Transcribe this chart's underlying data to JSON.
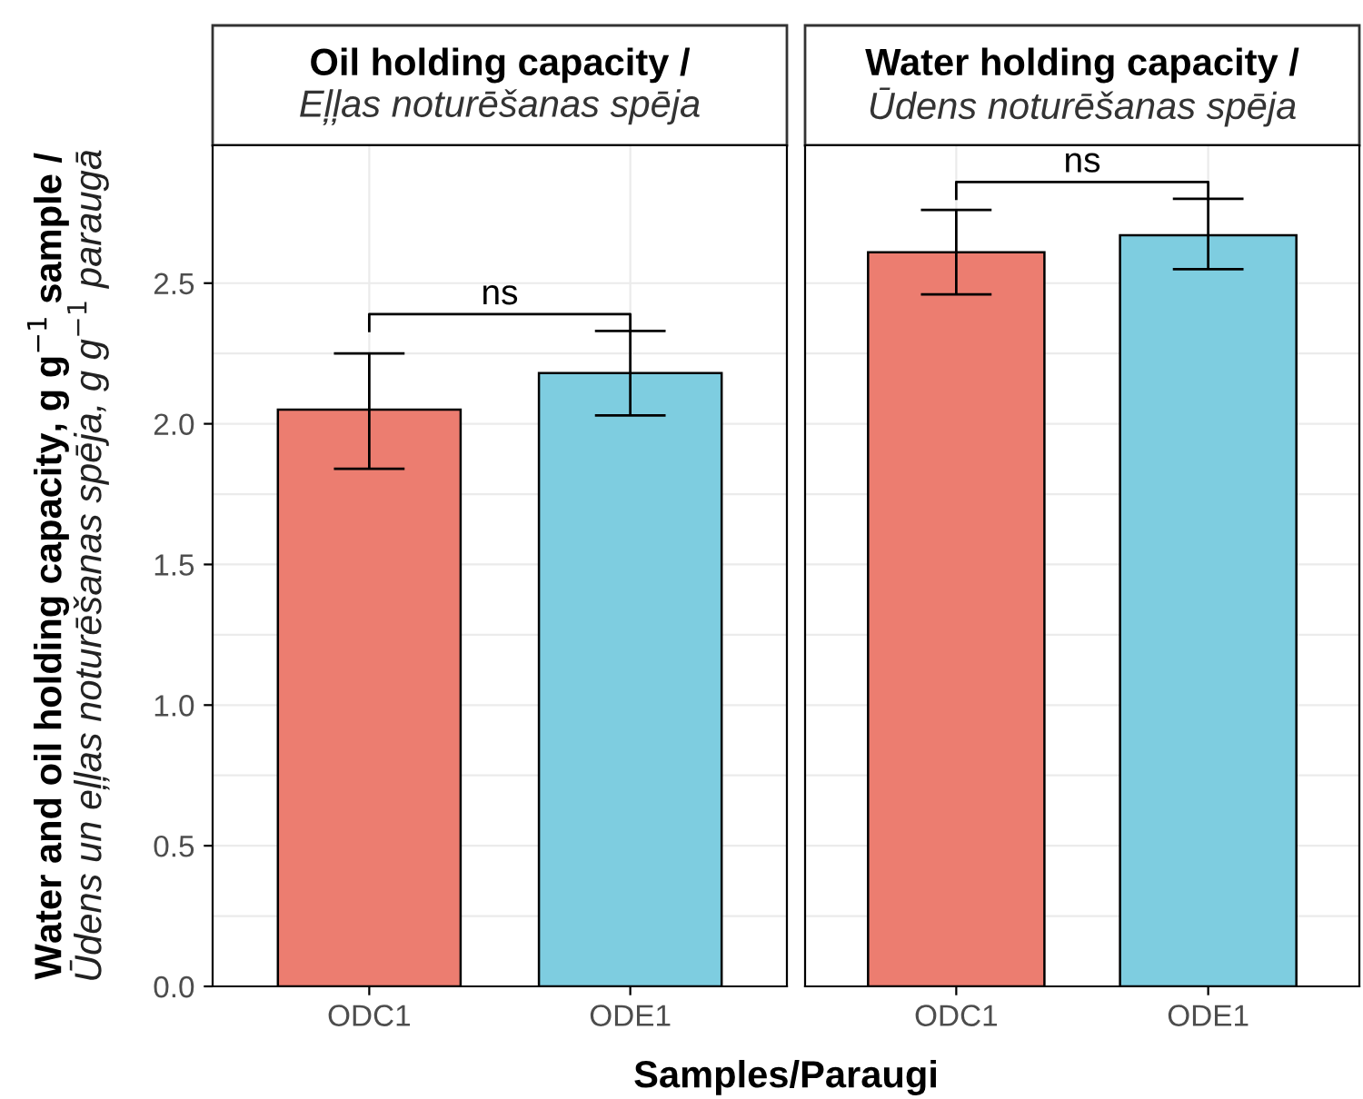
{
  "chart_data": [
    {
      "type": "bar",
      "title": "Oil holding capacity /",
      "subtitle": "Eļļas noturēšanas spēja",
      "xlabel": "Samples/Paraugi",
      "ylabel": "Water and oil holding capacity, g g$^{−1}$ sample /\nŪdens un eļļas noturēšanas spēja, g g$^{−1}$ paraugā",
      "categories": [
        "ODC1",
        "ODE1"
      ],
      "values": [
        2.05,
        2.18
      ],
      "colors": [
        "#ec7d70",
        "#7ecde0"
      ],
      "errors": [
        [
          1.84,
          2.25
        ],
        [
          2.03,
          2.33
        ]
      ],
      "ylim": [
        0,
        2.99
      ],
      "yticks": [
        {
          "value": 0,
          "label": "0.0"
        },
        {
          "value": 0.5,
          "label": "0.5"
        },
        {
          "value": 1,
          "label": "1.0"
        },
        {
          "value": 1.5,
          "label": "1.5"
        },
        {
          "value": 2,
          "label": "2.0"
        },
        {
          "value": 2.5,
          "label": "2.5"
        }
      ],
      "grid": true,
      "annotations": [
        "ns"
      ]
    },
    {
      "type": "bar",
      "title": "Water holding capacity /",
      "subtitle": "Ūdens noturēšanas spēja",
      "categories": [
        "ODC1",
        "ODE1"
      ],
      "values": [
        2.61,
        2.67
      ],
      "colors": [
        "#ec7d70",
        "#7ecde0"
      ],
      "errors": [
        [
          2.46,
          2.76
        ],
        [
          2.55,
          2.8
        ]
      ],
      "ylim": [
        0,
        2.99
      ],
      "yticks": [
        0,
        0.5,
        1,
        1.5,
        2,
        2.5
      ],
      "grid": true,
      "tick_labels": "x",
      "annotations": [
        "ns"
      ]
    }
  ]
}
